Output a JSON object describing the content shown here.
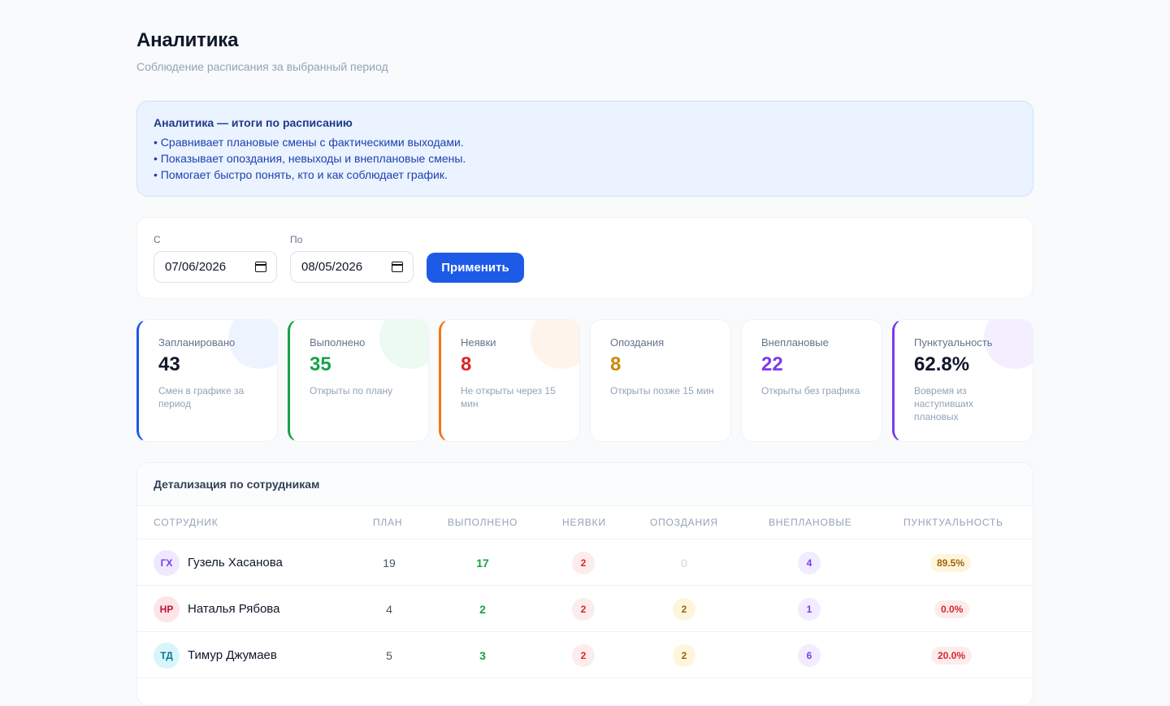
{
  "header": {
    "title": "Аналитика",
    "subtitle": "Соблюдение расписания за выбранный период"
  },
  "info": {
    "title": "Аналитика — итоги по расписанию",
    "lines": [
      "• Сравнивает плановые смены с фактическими выходами.",
      "• Показывает опоздания, невыходы и внеплановые смены.",
      "• Помогает быстро понять, кто и как соблюдает график."
    ]
  },
  "filter": {
    "from_label": "С",
    "from_value": "07/06/2026",
    "to_label": "По",
    "to_value": "08/05/2026",
    "apply_label": "Применить"
  },
  "cards": [
    {
      "label": "Запланировано",
      "value": "43",
      "desc": "Смен в графике за период",
      "color": "#0f172a",
      "accent": "#1d5ae8"
    },
    {
      "label": "Выполнено",
      "value": "35",
      "desc": "Открыты по плану",
      "color": "#16a34a",
      "accent": "#16a34a"
    },
    {
      "label": "Неявки",
      "value": "8",
      "desc": "Не открыты через 15 мин",
      "color": "#dc2626",
      "accent": "#f97316"
    },
    {
      "label": "Опоздания",
      "value": "8",
      "desc": "Открыты позже 15 мин",
      "color": "#ca8a04",
      "accent": ""
    },
    {
      "label": "Внеплановые",
      "value": "22",
      "desc": "Открыты без графика",
      "color": "#7c3aed",
      "accent": ""
    },
    {
      "label": "Пунктуальность",
      "value": "62.8%",
      "desc": "Вовремя из наступивших плановых",
      "color": "#0f172a",
      "accent": "#7c3aed"
    }
  ],
  "table": {
    "title": "Детализация по сотрудникам",
    "headers": [
      "Сотрудник",
      "План",
      "Выполнено",
      "Неявки",
      "Опоздания",
      "Внеплановые",
      "Пунктуальность"
    ],
    "rows": [
      {
        "initials": "ГХ",
        "name": "Гузель Хасанова",
        "plan": "19",
        "done": "17",
        "noshow": "2",
        "late": "0",
        "unplanned": "4",
        "punct": "89.5%",
        "avatar_bg": "#efe9ff",
        "avatar_fg": "#7c3aed"
      },
      {
        "initials": "НР",
        "name": "Наталья Рябова",
        "plan": "4",
        "done": "2",
        "noshow": "2",
        "late": "2",
        "unplanned": "1",
        "punct": "0.0%",
        "avatar_bg": "#fde4e6",
        "avatar_fg": "#be123c"
      },
      {
        "initials": "ТД",
        "name": "Тимур Джумаев",
        "plan": "5",
        "done": "3",
        "noshow": "2",
        "late": "2",
        "unplanned": "6",
        "punct": "20.0%",
        "avatar_bg": "#d7f6fb",
        "avatar_fg": "#0e7490"
      }
    ]
  }
}
